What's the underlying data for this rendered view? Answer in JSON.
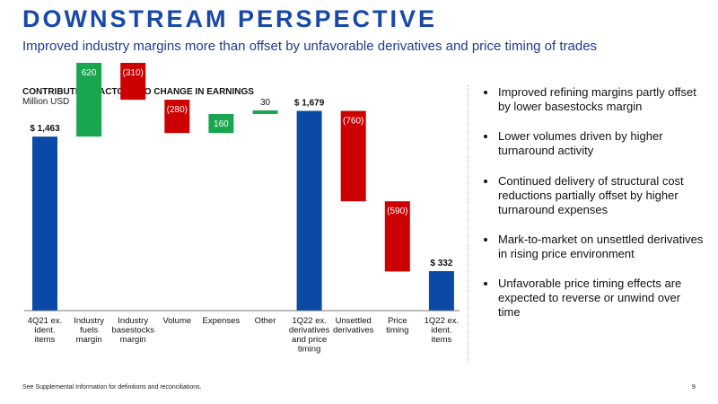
{
  "slide": {
    "title": "DOWNSTREAM PERSPECTIVE",
    "subtitle": "Improved industry margins more than offset by unfavorable derivatives and price timing of trades",
    "footnote": "See Supplemental Information for definitions and reconciliations.",
    "page_number": "9"
  },
  "colors": {
    "title": "#1849a9",
    "total": "#0a4aa6",
    "increase": "#1aa650",
    "decrease": "#cc0000"
  },
  "chart_data": {
    "type": "bar",
    "subtype": "waterfall",
    "title": "CONTRIBUTING FACTORS TO CHANGE IN EARNINGS",
    "unit": "Million USD",
    "categories": [
      [
        "4Q21 ex.",
        "ident.",
        "items"
      ],
      [
        "Industry",
        "fuels",
        "margin"
      ],
      [
        "Industry",
        "basestocks",
        "margin"
      ],
      [
        "Volume"
      ],
      [
        "Expenses"
      ],
      [
        "Other"
      ],
      [
        "1Q22 ex.",
        "derivatives",
        "and price",
        "timing"
      ],
      [
        "Unsettled",
        "derivatives"
      ],
      [
        "Price",
        "timing"
      ],
      [
        "1Q22 ex.",
        "ident.",
        "items"
      ]
    ],
    "values": [
      1463,
      620,
      -310,
      -280,
      160,
      30,
      1679,
      -760,
      -590,
      332
    ],
    "kinds": [
      "total",
      "increase",
      "decrease",
      "decrease",
      "increase",
      "increase",
      "total",
      "decrease",
      "decrease",
      "total"
    ],
    "data_labels": [
      "$ 1,463",
      "620",
      "(310)",
      "(280)",
      "160",
      "30",
      "$ 1,679",
      "(760)",
      "(590)",
      "$ 332"
    ],
    "ylim": [
      0,
      2200
    ]
  },
  "bullets": [
    "Improved refining margins partly offset by lower basestocks margin",
    "Lower volumes driven by higher turnaround activity",
    "Continued delivery of structural cost reductions partially offset by higher turnaround expenses",
    "Mark-to-market on unsettled derivatives in rising price environment",
    "Unfavorable price timing effects are expected to reverse or unwind over time"
  ]
}
